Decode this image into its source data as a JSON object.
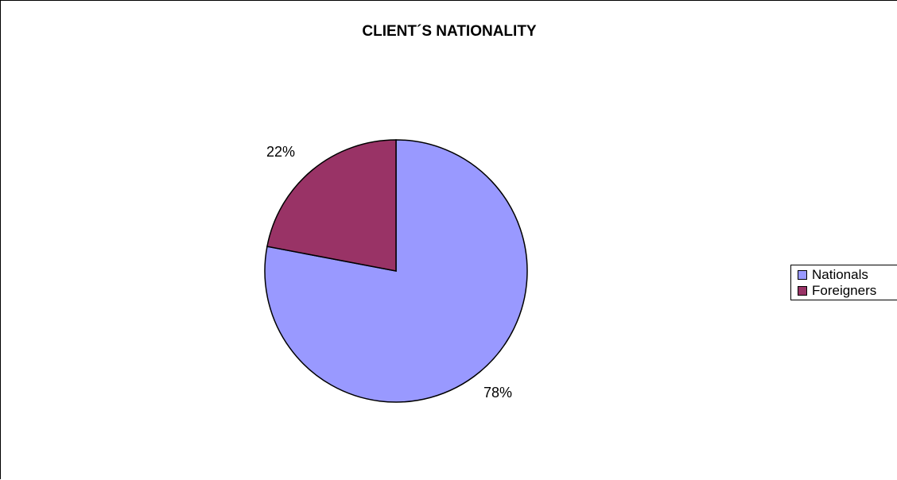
{
  "chart_data": {
    "type": "pie",
    "title": "CLIENT´S NATIONALITY",
    "categories": [
      "Nationals",
      "Foreigners"
    ],
    "values": [
      78,
      22
    ],
    "labels": [
      "78%",
      "22%"
    ],
    "colors": [
      "#9999ff",
      "#993366"
    ],
    "legend_position": "right"
  }
}
